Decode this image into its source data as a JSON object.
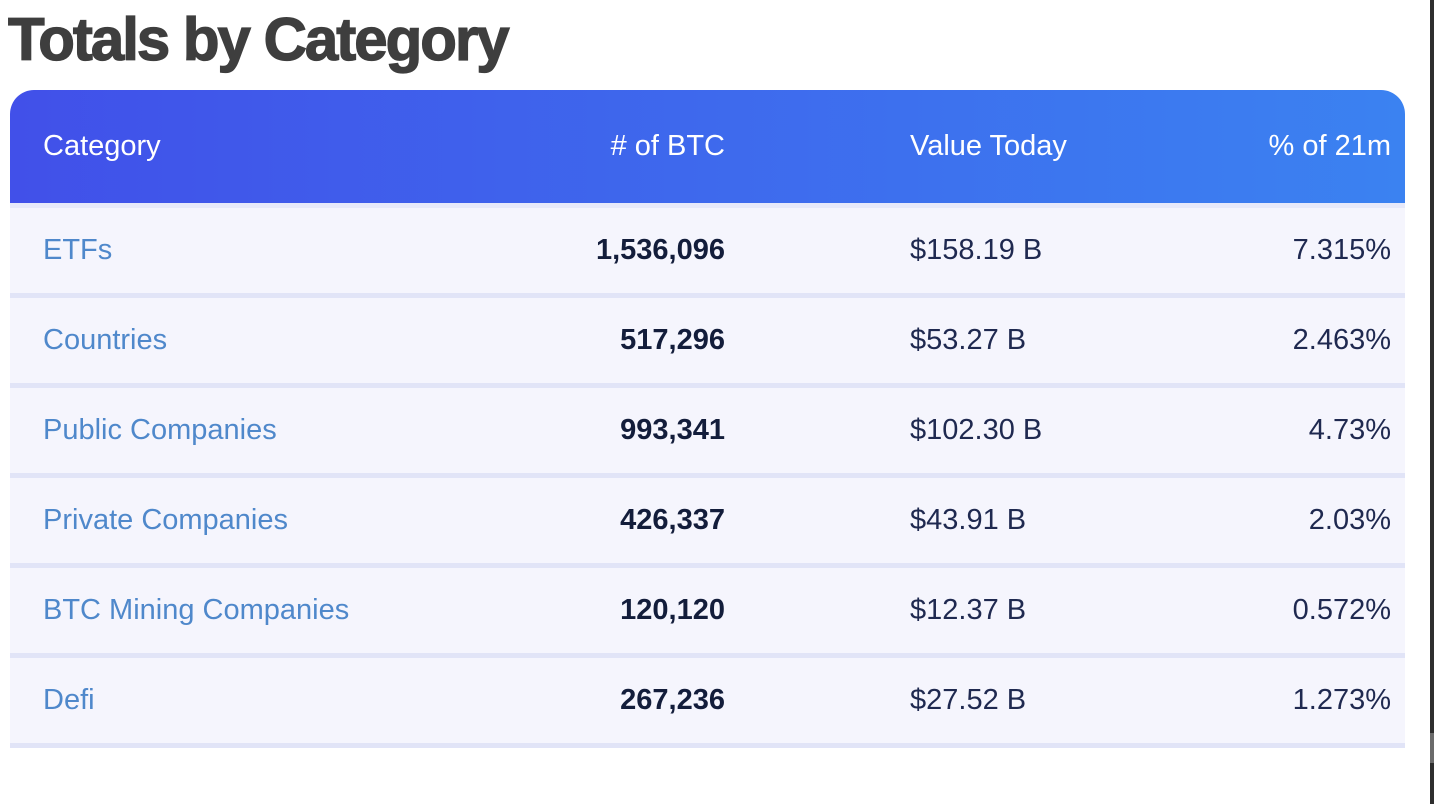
{
  "page": {
    "title": "Totals by Category"
  },
  "table": {
    "columns": [
      {
        "label": "Category"
      },
      {
        "label": "# of BTC"
      },
      {
        "label": "Value Today"
      },
      {
        "label": "% of 21m"
      }
    ],
    "rows": [
      {
        "category": "ETFs",
        "btc": "1,536,096",
        "value": "$158.19 B",
        "pct": "7.315%"
      },
      {
        "category": "Countries",
        "btc": "517,296",
        "value": "$53.27 B",
        "pct": "2.463%"
      },
      {
        "category": "Public Companies",
        "btc": "993,341",
        "value": "$102.30 B",
        "pct": "4.73%"
      },
      {
        "category": "Private Companies",
        "btc": "426,337",
        "value": "$43.91 B",
        "pct": "2.03%"
      },
      {
        "category": "BTC Mining Companies",
        "btc": "120,120",
        "value": "$12.37 B",
        "pct": "0.572%"
      },
      {
        "category": "Defi",
        "btc": "267,236",
        "value": "$27.52 B",
        "pct": "1.273%"
      }
    ]
  },
  "colors": {
    "header_gradient_start": "#4150e9",
    "header_gradient_end": "#3b82f1",
    "header_text": "#ffffff",
    "row_background": "#f5f5fd",
    "row_divider": "#e1e4f7",
    "category_link": "#4f88cb",
    "btc_number_text": "#131d3b",
    "value_text": "#1f2950",
    "title_text": "#3e3e3e"
  }
}
